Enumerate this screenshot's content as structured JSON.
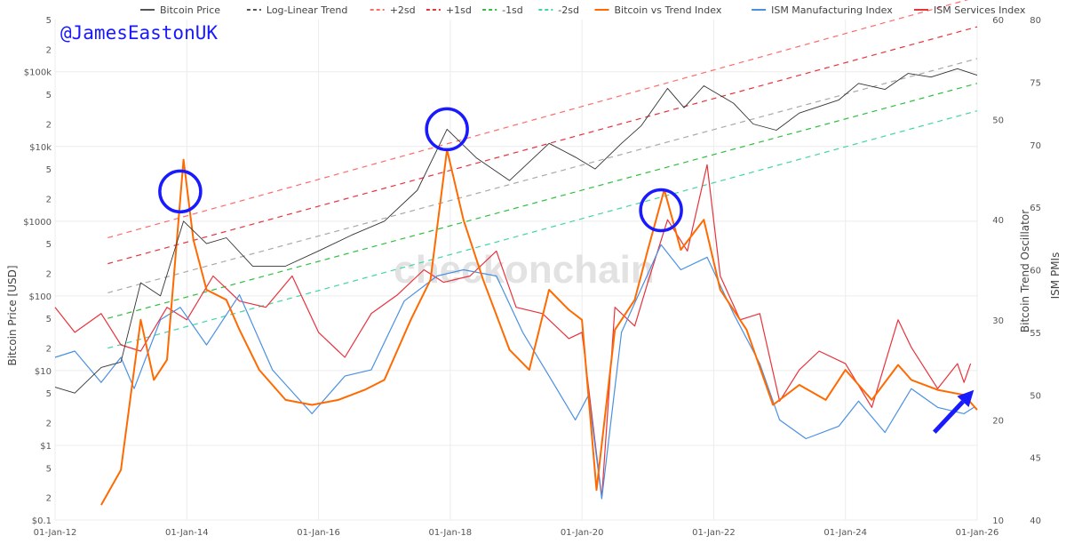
{
  "handle": "@JamesEastonUK",
  "watermark": "checkonchain",
  "chart_data": {
    "type": "line",
    "x_range": [
      "2012-01-01",
      "2026-01-01"
    ],
    "x_ticks": [
      "01-Jan-12",
      "01-Jan-14",
      "01-Jan-16",
      "01-Jan-18",
      "01-Jan-20",
      "01-Jan-22",
      "01-Jan-24",
      "01-Jan-26"
    ],
    "axes": {
      "left": {
        "title": "Bitcoin Price [USD]",
        "scale": "log",
        "range": [
          0.1,
          500000
        ],
        "major_ticks": [
          {
            "v": 0.1,
            "label": "$0.1"
          },
          {
            "v": 1,
            "label": "$1"
          },
          {
            "v": 10,
            "label": "$10"
          },
          {
            "v": 100,
            "label": "$100"
          },
          {
            "v": 1000,
            "label": "$1000"
          },
          {
            "v": 10000,
            "label": "$10k"
          },
          {
            "v": 100000,
            "label": "$100k"
          }
        ],
        "minor_ticks": [
          {
            "v": 0.2,
            "label": "2"
          },
          {
            "v": 0.5,
            "label": "5"
          },
          {
            "v": 2,
            "label": "2"
          },
          {
            "v": 5,
            "label": "5"
          },
          {
            "v": 20,
            "label": "2"
          },
          {
            "v": 50,
            "label": "5"
          },
          {
            "v": 200,
            "label": "2"
          },
          {
            "v": 500,
            "label": "5"
          },
          {
            "v": 2000,
            "label": "2"
          },
          {
            "v": 5000,
            "label": "5"
          },
          {
            "v": 20000,
            "label": "2"
          },
          {
            "v": 50000,
            "label": "5"
          },
          {
            "v": 200000,
            "label": "2"
          },
          {
            "v": 500000,
            "label": "5"
          }
        ]
      },
      "oscillator": {
        "title": "Bitcoin Trend Oscillator",
        "range": [
          10,
          60
        ],
        "ticks": [
          "10",
          "20",
          "30",
          "40",
          "50",
          "60"
        ]
      },
      "pmi": {
        "title": "ISM PMIs",
        "range": [
          40,
          80
        ],
        "ticks": [
          "40",
          "45",
          "50",
          "55",
          "60",
          "65",
          "70",
          "75",
          "80"
        ]
      }
    },
    "legend_position": "top",
    "legend": [
      {
        "name": "Bitcoin Price",
        "color": "#555555",
        "dash": "solid"
      },
      {
        "name": "Log-Linear Trend",
        "color": "#555555",
        "dash": "dash"
      },
      {
        "name": "+2sd",
        "color": "#ff6b6b",
        "dash": "dash"
      },
      {
        "name": "+1sd",
        "color": "#e8323c",
        "dash": "dash"
      },
      {
        "name": "-1sd",
        "color": "#2fbf3f",
        "dash": "dash"
      },
      {
        "name": "-2sd",
        "color": "#3fd6a6",
        "dash": "dash"
      },
      {
        "name": "Bitcoin vs Trend Index",
        "color": "#ff6a00",
        "dash": "solid"
      },
      {
        "name": "ISM Manufacturing Index",
        "color": "#4a90e2",
        "dash": "solid"
      },
      {
        "name": "ISM Services Index",
        "color": "#e8323c",
        "dash": "solid"
      }
    ],
    "bands": [
      {
        "name": "+2sd",
        "color": "#ff6b6b",
        "y_start": 600,
        "y_end": 1000000
      },
      {
        "name": "+1sd",
        "color": "#e8323c",
        "y_start": 270,
        "y_end": 400000
      },
      {
        "name": "Log-Linear Trend",
        "color": "#a9a9a9",
        "y_start": 110,
        "y_end": 150000
      },
      {
        "name": "-1sd",
        "color": "#2fbf3f",
        "y_start": 50,
        "y_end": 70000
      },
      {
        "name": "-2sd",
        "color": "#3fd6a6",
        "y_start": 20,
        "y_end": 30000
      }
    ],
    "series": [
      {
        "name": "ISM Services Index",
        "axis": "pmi",
        "color": "#e8323c",
        "width": 1.2,
        "points": [
          [
            2012.0,
            57.0
          ],
          [
            2012.3,
            55.0
          ],
          [
            2012.7,
            56.5
          ],
          [
            2013.0,
            54.0
          ],
          [
            2013.3,
            53.5
          ],
          [
            2013.7,
            57.0
          ],
          [
            2014.0,
            56.0
          ],
          [
            2014.4,
            59.5
          ],
          [
            2014.8,
            57.5
          ],
          [
            2015.2,
            57.0
          ],
          [
            2015.6,
            59.5
          ],
          [
            2016.0,
            55.0
          ],
          [
            2016.4,
            53.0
          ],
          [
            2016.8,
            56.5
          ],
          [
            2017.2,
            58.0
          ],
          [
            2017.6,
            60.0
          ],
          [
            2017.9,
            59.0
          ],
          [
            2018.3,
            59.5
          ],
          [
            2018.7,
            61.5
          ],
          [
            2019.0,
            57.0
          ],
          [
            2019.4,
            56.5
          ],
          [
            2019.8,
            54.5
          ],
          [
            2020.0,
            55.0
          ],
          [
            2020.3,
            41.8
          ],
          [
            2020.5,
            57.0
          ],
          [
            2020.8,
            55.5
          ],
          [
            2021.0,
            59.0
          ],
          [
            2021.3,
            64.0
          ],
          [
            2021.6,
            61.5
          ],
          [
            2021.9,
            68.4
          ],
          [
            2022.1,
            59.5
          ],
          [
            2022.4,
            56.0
          ],
          [
            2022.7,
            56.5
          ],
          [
            2023.0,
            49.5
          ],
          [
            2023.3,
            52.0
          ],
          [
            2023.6,
            53.5
          ],
          [
            2024.0,
            52.5
          ],
          [
            2024.4,
            49.0
          ],
          [
            2024.8,
            56.0
          ],
          [
            2025.0,
            53.8
          ],
          [
            2025.4,
            50.5
          ],
          [
            2025.7,
            52.5
          ],
          [
            2025.8,
            51.0
          ],
          [
            2025.9,
            52.5
          ]
        ]
      },
      {
        "name": "ISM Manufacturing Index",
        "axis": "pmi",
        "color": "#4a90e2",
        "width": 1.2,
        "points": [
          [
            2012.0,
            53.0
          ],
          [
            2012.3,
            53.5
          ],
          [
            2012.7,
            51.0
          ],
          [
            2013.0,
            53.0
          ],
          [
            2013.2,
            50.5
          ],
          [
            2013.6,
            56.0
          ],
          [
            2013.9,
            57.0
          ],
          [
            2014.3,
            54.0
          ],
          [
            2014.8,
            58.0
          ],
          [
            2015.3,
            52.0
          ],
          [
            2015.9,
            48.5
          ],
          [
            2016.4,
            51.5
          ],
          [
            2016.8,
            52.0
          ],
          [
            2017.3,
            57.5
          ],
          [
            2017.8,
            59.5
          ],
          [
            2018.2,
            60.0
          ],
          [
            2018.7,
            59.5
          ],
          [
            2019.1,
            55.0
          ],
          [
            2019.5,
            51.5
          ],
          [
            2019.9,
            48.0
          ],
          [
            2020.1,
            50.0
          ],
          [
            2020.3,
            41.7
          ],
          [
            2020.6,
            55.0
          ],
          [
            2020.9,
            58.5
          ],
          [
            2021.2,
            62.0
          ],
          [
            2021.5,
            60.0
          ],
          [
            2021.9,
            61.0
          ],
          [
            2022.3,
            56.5
          ],
          [
            2022.7,
            52.5
          ],
          [
            2023.0,
            48.0
          ],
          [
            2023.4,
            46.5
          ],
          [
            2023.9,
            47.5
          ],
          [
            2024.2,
            49.5
          ],
          [
            2024.6,
            47.0
          ],
          [
            2025.0,
            50.5
          ],
          [
            2025.4,
            49.0
          ],
          [
            2025.8,
            48.5
          ],
          [
            2025.95,
            49.0
          ]
        ]
      },
      {
        "name": "Bitcoin vs Trend Index",
        "axis": "oscillator",
        "color": "#ff6a00",
        "width": 2.0,
        "points": [
          [
            2012.7,
            11.5
          ],
          [
            2013.0,
            15.0
          ],
          [
            2013.3,
            30.0
          ],
          [
            2013.5,
            24.0
          ],
          [
            2013.7,
            26.0
          ],
          [
            2013.95,
            46.0
          ],
          [
            2014.1,
            38.0
          ],
          [
            2014.3,
            33.0
          ],
          [
            2014.6,
            32.0
          ],
          [
            2014.8,
            29.0
          ],
          [
            2015.1,
            25.0
          ],
          [
            2015.5,
            22.0
          ],
          [
            2015.9,
            21.5
          ],
          [
            2016.3,
            22.0
          ],
          [
            2016.7,
            23.0
          ],
          [
            2017.0,
            24.0
          ],
          [
            2017.4,
            30.0
          ],
          [
            2017.7,
            34.0
          ],
          [
            2017.95,
            47.0
          ],
          [
            2018.2,
            40.0
          ],
          [
            2018.5,
            34.0
          ],
          [
            2018.9,
            27.0
          ],
          [
            2019.2,
            25.0
          ],
          [
            2019.5,
            33.0
          ],
          [
            2019.8,
            31.0
          ],
          [
            2020.0,
            30.0
          ],
          [
            2020.22,
            13.0
          ],
          [
            2020.5,
            29.0
          ],
          [
            2020.8,
            32.0
          ],
          [
            2021.0,
            37.0
          ],
          [
            2021.25,
            43.0
          ],
          [
            2021.5,
            37.0
          ],
          [
            2021.85,
            40.0
          ],
          [
            2022.1,
            33.0
          ],
          [
            2022.5,
            29.0
          ],
          [
            2022.9,
            21.5
          ],
          [
            2023.3,
            23.5
          ],
          [
            2023.7,
            22.0
          ],
          [
            2024.0,
            25.0
          ],
          [
            2024.4,
            22.0
          ],
          [
            2024.8,
            25.5
          ],
          [
            2025.0,
            24.0
          ],
          [
            2025.4,
            23.0
          ],
          [
            2025.8,
            22.5
          ],
          [
            2026.0,
            21.0
          ]
        ]
      },
      {
        "name": "Bitcoin Price",
        "axis": "left",
        "color": "#333333",
        "width": 0.9,
        "points": [
          [
            2012.0,
            6.0
          ],
          [
            2012.3,
            5.0
          ],
          [
            2012.7,
            11.0
          ],
          [
            2013.0,
            13.0
          ],
          [
            2013.3,
            150.0
          ],
          [
            2013.6,
            100.0
          ],
          [
            2013.95,
            1000.0
          ],
          [
            2014.3,
            500.0
          ],
          [
            2014.6,
            600.0
          ],
          [
            2015.0,
            250.0
          ],
          [
            2015.5,
            250.0
          ],
          [
            2016.0,
            400.0
          ],
          [
            2016.5,
            650.0
          ],
          [
            2017.0,
            1000.0
          ],
          [
            2017.5,
            2600.0
          ],
          [
            2017.95,
            17000.0
          ],
          [
            2018.4,
            7000.0
          ],
          [
            2018.9,
            3500.0
          ],
          [
            2019.5,
            11000.0
          ],
          [
            2019.9,
            7200.0
          ],
          [
            2020.2,
            5000.0
          ],
          [
            2020.6,
            11000.0
          ],
          [
            2020.9,
            19000.0
          ],
          [
            2021.3,
            60000.0
          ],
          [
            2021.55,
            33000.0
          ],
          [
            2021.85,
            65000.0
          ],
          [
            2022.3,
            38000.0
          ],
          [
            2022.6,
            20000.0
          ],
          [
            2022.95,
            16500.0
          ],
          [
            2023.3,
            28000.0
          ],
          [
            2023.9,
            42000.0
          ],
          [
            2024.2,
            70000.0
          ],
          [
            2024.6,
            58000.0
          ],
          [
            2024.95,
            95000.0
          ],
          [
            2025.3,
            85000.0
          ],
          [
            2025.7,
            110000.0
          ],
          [
            2026.0,
            90000.0
          ]
        ]
      }
    ],
    "annotations": [
      {
        "type": "circle",
        "x": 2013.9,
        "y": 2500,
        "color": "#1a1aff"
      },
      {
        "type": "circle",
        "x": 2017.95,
        "y": 17000,
        "color": "#1a1aff"
      },
      {
        "type": "circle",
        "x": 2021.2,
        "y": 1400,
        "color": "#1a1aff"
      },
      {
        "type": "arrow",
        "from": [
          2025.35,
          1.5
        ],
        "to": [
          2025.95,
          5.5
        ],
        "color": "#1a1aff"
      }
    ]
  }
}
